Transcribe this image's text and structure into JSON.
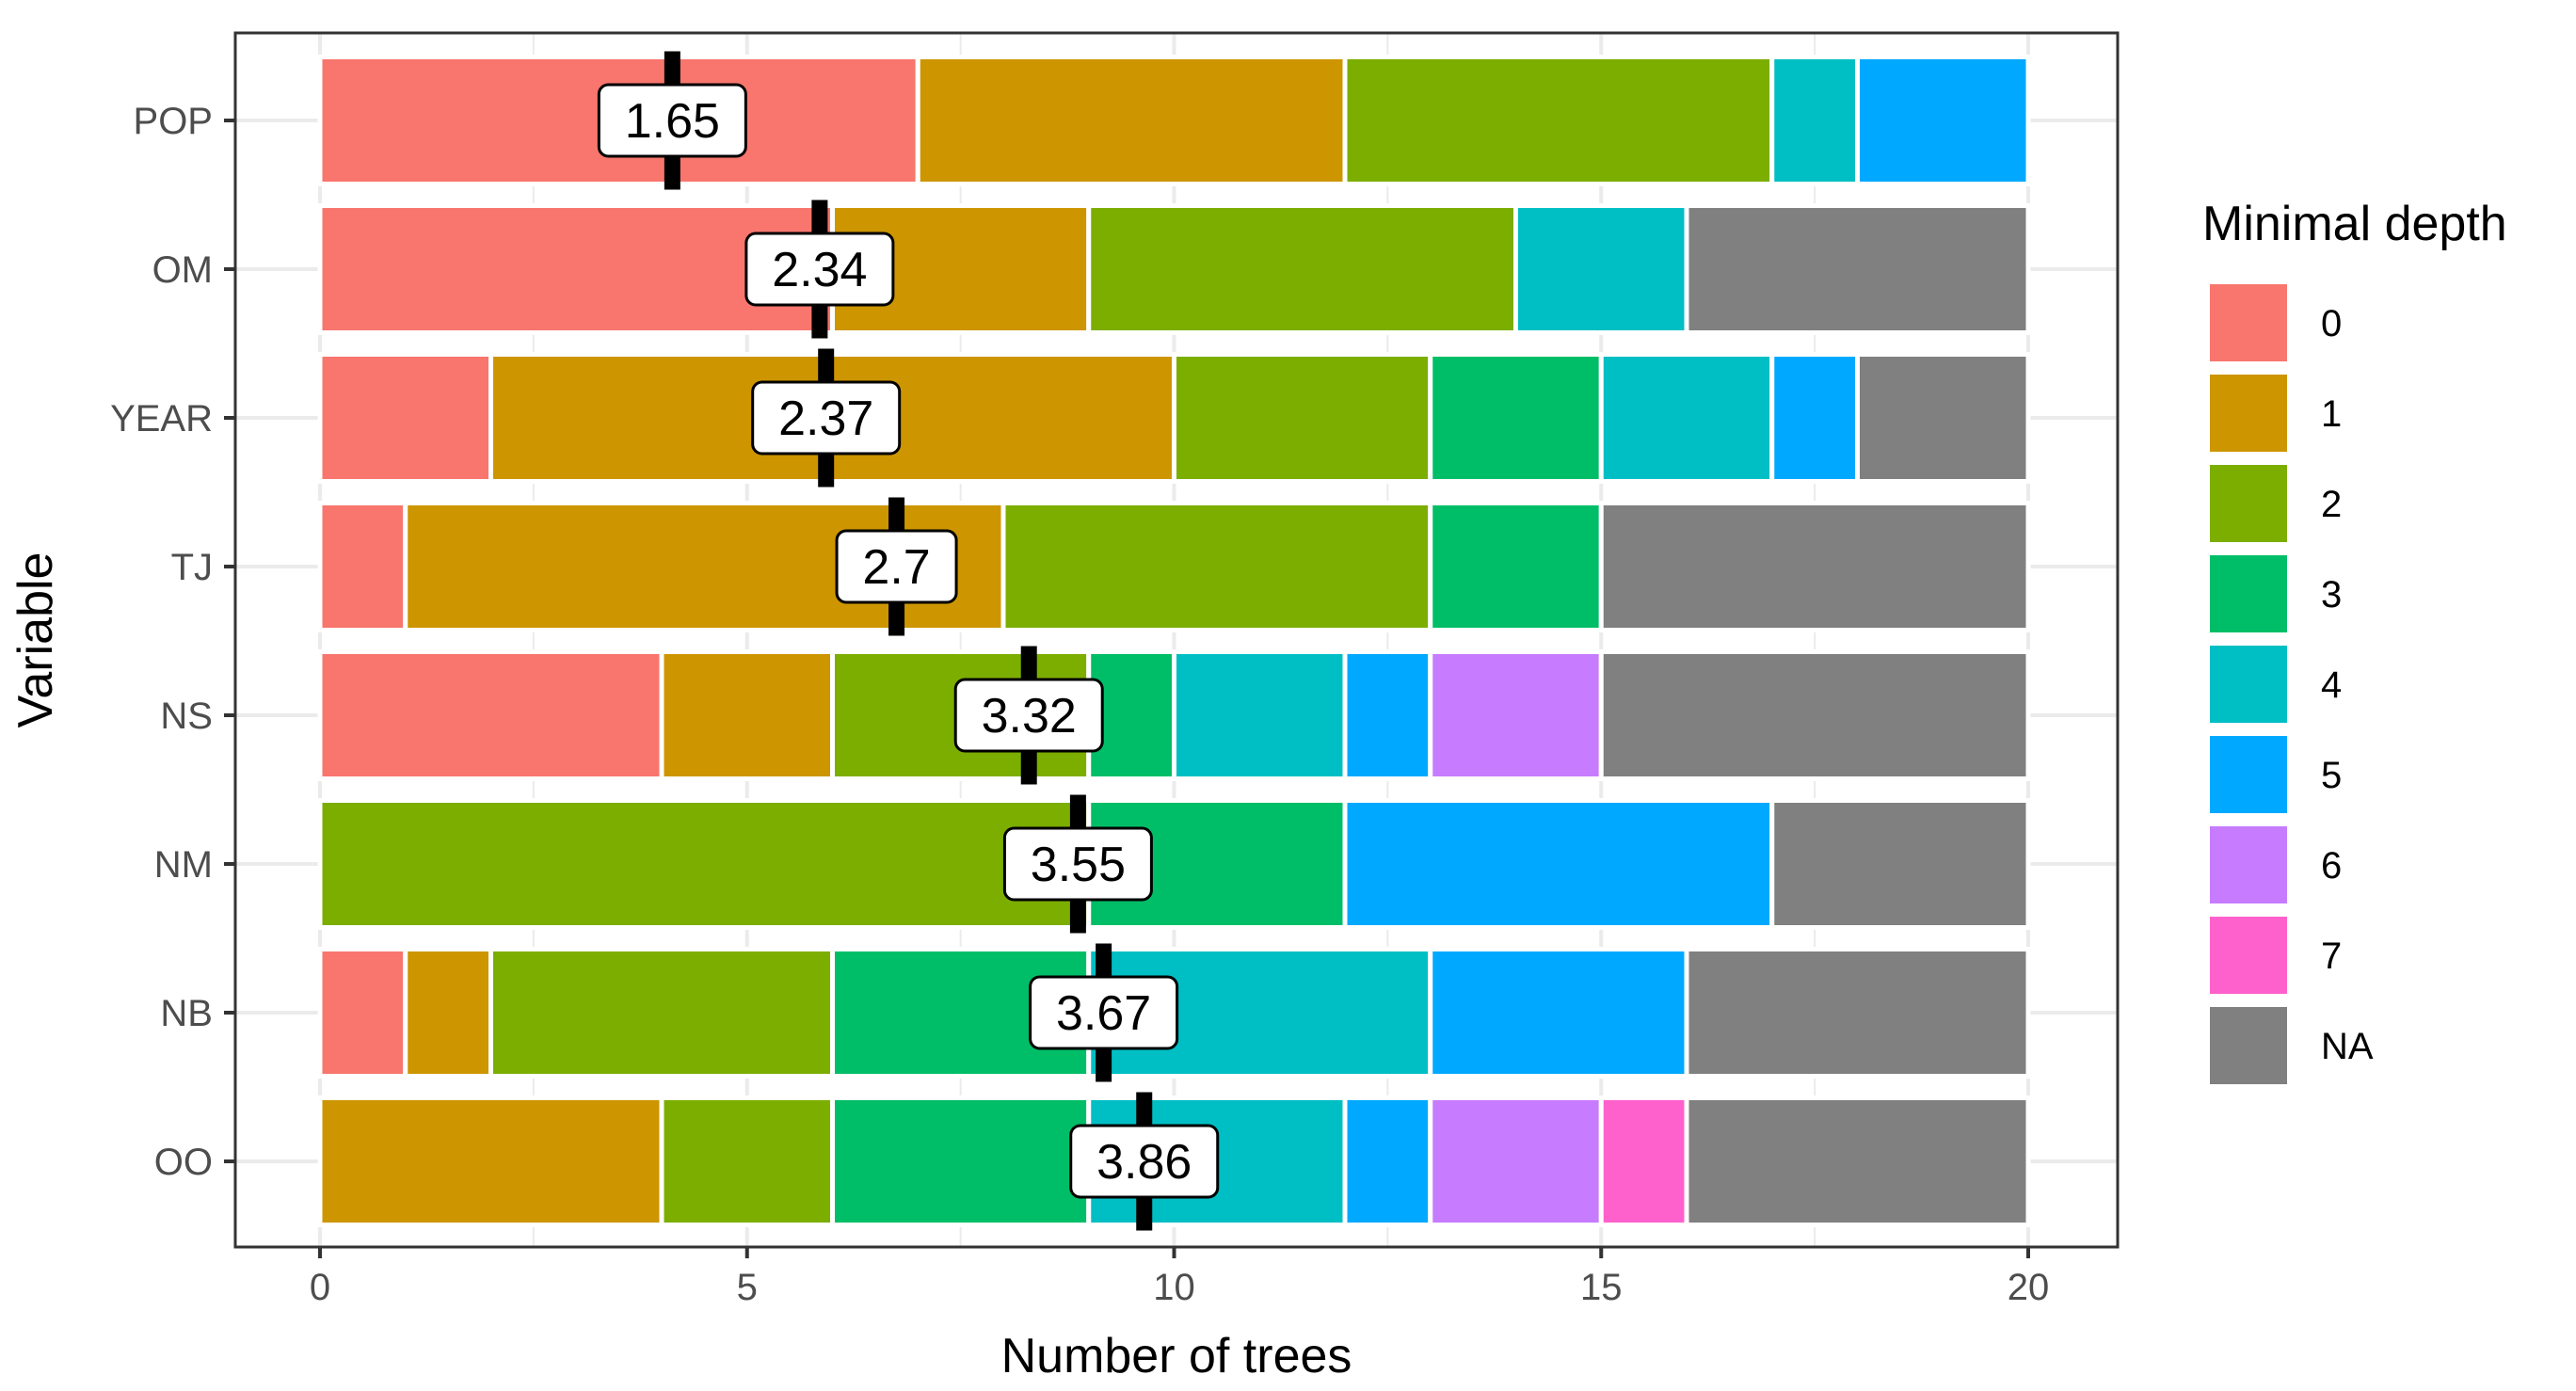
{
  "chart_data": {
    "type": "bar",
    "orientation": "horizontal",
    "stacked": true,
    "xlabel": "Number of trees",
    "ylabel": "Variable",
    "xlim": [
      0,
      20
    ],
    "x_ticks": [
      0,
      5,
      10,
      15,
      20
    ],
    "grid": true,
    "legend": {
      "title": "Minimal depth",
      "position": "right"
    },
    "depth_levels": [
      {
        "label": "0",
        "color": "#F8766D"
      },
      {
        "label": "1",
        "color": "#CD9600"
      },
      {
        "label": "2",
        "color": "#7CAE00"
      },
      {
        "label": "3",
        "color": "#00BE67"
      },
      {
        "label": "4",
        "color": "#00BFC4"
      },
      {
        "label": "5",
        "color": "#00A9FF"
      },
      {
        "label": "6",
        "color": "#C77CFF"
      },
      {
        "label": "7",
        "color": "#FF61CC"
      },
      {
        "label": "NA",
        "color": "#808080"
      }
    ],
    "variables": [
      {
        "name": "POP",
        "counts": [
          7,
          5,
          5,
          0,
          1,
          2,
          0,
          0,
          0
        ],
        "mean_label": "1.65"
      },
      {
        "name": "OM",
        "counts": [
          6,
          3,
          5,
          0,
          2,
          0,
          0,
          0,
          4
        ],
        "mean_label": "2.34"
      },
      {
        "name": "YEAR",
        "counts": [
          2,
          8,
          3,
          2,
          2,
          1,
          0,
          0,
          2
        ],
        "mean_label": "2.37"
      },
      {
        "name": "TJ",
        "counts": [
          1,
          7,
          5,
          2,
          0,
          0,
          0,
          0,
          5
        ],
        "mean_label": "2.7"
      },
      {
        "name": "NS",
        "counts": [
          4,
          2,
          3,
          1,
          2,
          1,
          2,
          0,
          5
        ],
        "mean_label": "3.32"
      },
      {
        "name": "NM",
        "counts": [
          0,
          0,
          9,
          3,
          0,
          5,
          0,
          0,
          3
        ],
        "mean_label": "3.55"
      },
      {
        "name": "NB",
        "counts": [
          1,
          1,
          4,
          3,
          4,
          3,
          0,
          0,
          4
        ],
        "mean_label": "3.67"
      },
      {
        "name": "OO",
        "counts": [
          0,
          4,
          2,
          3,
          3,
          1,
          2,
          1,
          4
        ],
        "mean_label": "3.86"
      }
    ]
  }
}
